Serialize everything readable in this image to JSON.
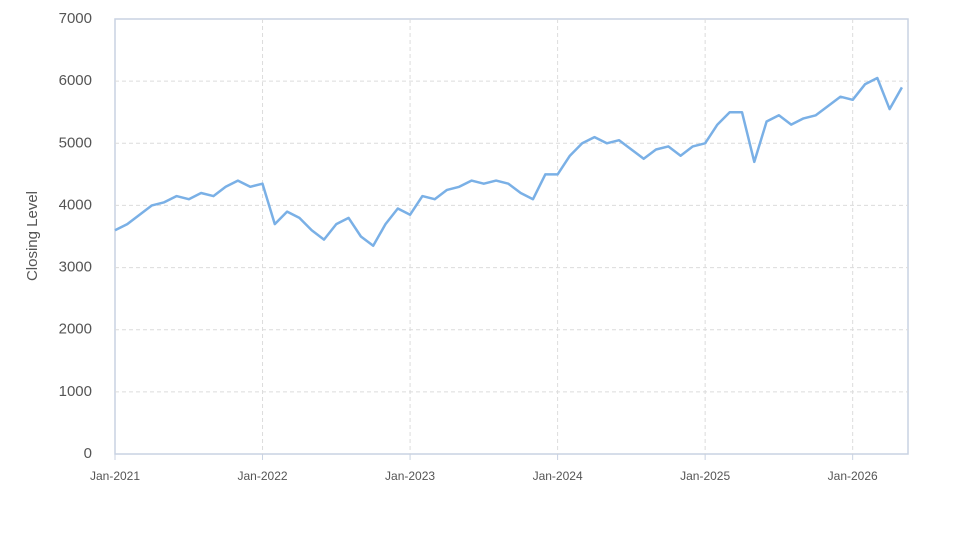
{
  "chart_data": {
    "type": "line",
    "ylabel": "Closing Level",
    "x": [
      "2021-01",
      "2021-02",
      "2021-03",
      "2021-04",
      "2021-05",
      "2021-06",
      "2021-07",
      "2021-08",
      "2021-09",
      "2021-10",
      "2021-11",
      "2021-12",
      "2022-01",
      "2022-02",
      "2022-03",
      "2022-04",
      "2022-05",
      "2022-06",
      "2022-07",
      "2022-08",
      "2022-09",
      "2022-10",
      "2022-11",
      "2022-12",
      "2023-01",
      "2023-02",
      "2023-03",
      "2023-04",
      "2023-05",
      "2023-06",
      "2023-07",
      "2023-08",
      "2023-09",
      "2023-10",
      "2023-11",
      "2023-12",
      "2024-01",
      "2024-02",
      "2024-03",
      "2024-04",
      "2024-05",
      "2024-06",
      "2024-07",
      "2024-08",
      "2024-09",
      "2024-10",
      "2024-11",
      "2024-12",
      "2025-01",
      "2025-02",
      "2025-03",
      "2025-04",
      "2025-05",
      "2025-06",
      "2025-07",
      "2025-08",
      "2025-09",
      "2025-10",
      "2025-11",
      "2025-12",
      "2026-01",
      "2026-02",
      "2026-03",
      "2026-04",
      "2026-05"
    ],
    "values": [
      3600,
      3700,
      3850,
      4000,
      4050,
      4150,
      4100,
      4200,
      4150,
      4300,
      4400,
      4300,
      4350,
      3700,
      3900,
      3800,
      3600,
      3450,
      3700,
      3800,
      3500,
      3350,
      3700,
      3950,
      3850,
      4150,
      4100,
      4250,
      4300,
      4400,
      4350,
      4400,
      4350,
      4200,
      4100,
      4500,
      4500,
      4800,
      5000,
      5100,
      5000,
      5050,
      4900,
      4750,
      4900,
      4950,
      4800,
      4950,
      5000,
      5300,
      5500,
      5500,
      4700,
      5350,
      5450,
      5300,
      5400,
      5450,
      5600,
      5750,
      5700,
      5950,
      6050,
      5550,
      5900
    ],
    "color": "#7ab0e6",
    "xlim": [
      "2021-01",
      "2026-05"
    ],
    "xticks": [
      {
        "value": "2021-01",
        "label": "Jan-2021"
      },
      {
        "value": "2022-01",
        "label": "Jan-2022"
      },
      {
        "value": "2023-01",
        "label": "Jan-2023"
      },
      {
        "value": "2024-01",
        "label": "Jan-2024"
      },
      {
        "value": "2025-01",
        "label": "Jan-2025"
      },
      {
        "value": "2026-01",
        "label": "Jan-2026"
      }
    ],
    "ylim": [
      0,
      7000
    ],
    "yticks": [
      0,
      1000,
      2000,
      3000,
      4000,
      5000,
      6000,
      7000
    ],
    "grid": true
  }
}
